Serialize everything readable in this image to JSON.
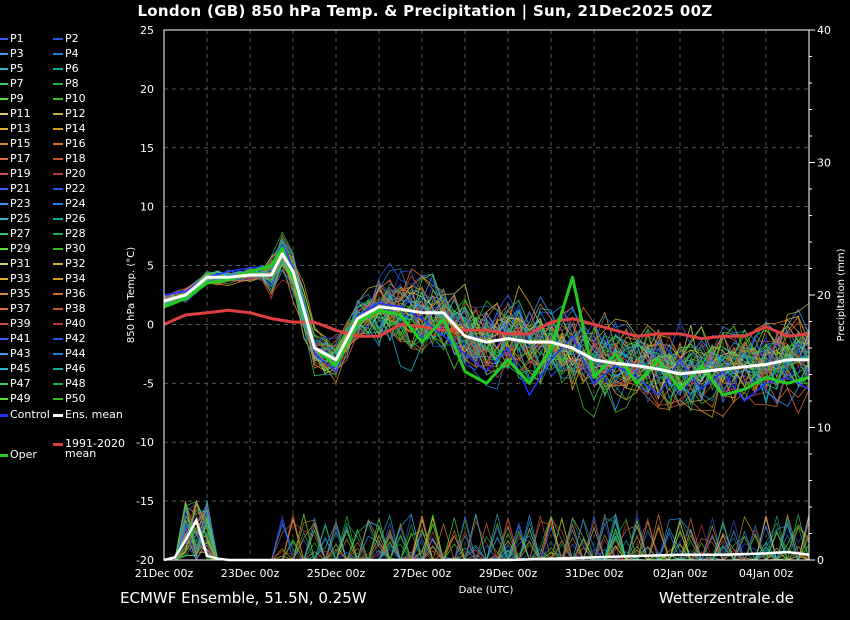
{
  "header": {
    "title": "London  (GB)  850 hPa Temp. & Precipitation | Sun, 21Dec2025 00Z"
  },
  "footer": {
    "model": "ECMWF Ensemble, 51.5N, 0.25W",
    "source": "Wetterzentrale.de"
  },
  "chart_data": {
    "type": "line",
    "title": "London  (GB)  850 hPa Temp. & Precipitation | Sun, 21Dec2025 00Z",
    "xlabel": "Date (UTC)",
    "ylabel": "850 hPa Temp. (°C)",
    "y2label": "Precipitation (mm)",
    "ylim": [
      -20,
      25
    ],
    "y2lim": [
      0,
      40
    ],
    "xlim_hours": [
      0,
      360
    ],
    "grid": true,
    "x_ticks": [
      "21Dec 00z",
      "23Dec 00z",
      "25Dec 00z",
      "27Dec 00z",
      "29Dec 00z",
      "31Dec 00z",
      "02Jan 00z",
      "04Jan 00z"
    ],
    "y_ticks": [
      "25",
      "20",
      "15",
      "10",
      "5",
      "0",
      "-5",
      "-10",
      "-15",
      "-20"
    ],
    "y2_ticks": [
      "40",
      "30",
      "20",
      "10",
      "0"
    ],
    "legend": {
      "placement": "left",
      "members": [
        "P1",
        "P2",
        "P3",
        "P4",
        "P5",
        "P6",
        "P7",
        "P8",
        "P9",
        "P10",
        "P11",
        "P12",
        "P13",
        "P14",
        "P15",
        "P16",
        "P17",
        "P18",
        "P19",
        "P20",
        "P21",
        "P22",
        "P23",
        "P24",
        "P25",
        "P26",
        "P27",
        "P28",
        "P29",
        "P30",
        "P31",
        "P32",
        "P33",
        "P34",
        "P35",
        "P36",
        "P37",
        "P38",
        "P39",
        "P40",
        "P41",
        "P42",
        "P43",
        "P44",
        "P45",
        "P46",
        "P47",
        "P48",
        "P49",
        "P50"
      ],
      "member_colors": [
        "#3b5bff",
        "#2f4fd8",
        "#3399ff",
        "#1f7fe0",
        "#22b8cc",
        "#18a8a0",
        "#33cc66",
        "#22aa44",
        "#55dd33",
        "#33bb22",
        "#d8d060",
        "#c8b040",
        "#e0b030",
        "#d09a20",
        "#e08a30",
        "#d07028",
        "#e06a40",
        "#c85030",
        "#d04a4a",
        "#b83838",
        "#3b5bff",
        "#2f4fd8",
        "#3399ff",
        "#1f7fe0",
        "#22b8cc",
        "#18a8a0",
        "#33cc66",
        "#22aa44",
        "#55dd33",
        "#33bb22",
        "#d8d060",
        "#c8b040",
        "#e0b030",
        "#d09a20",
        "#e08a30",
        "#d07028",
        "#e06a40",
        "#c85030",
        "#d04a4a",
        "#b83838",
        "#3b5bff",
        "#2f4fd8",
        "#3399ff",
        "#1f7fe0",
        "#22b8cc",
        "#18a8a0",
        "#33cc66",
        "#22aa44",
        "#55dd33",
        "#33bb22"
      ],
      "control": {
        "label": "Control",
        "color": "#2233ff"
      },
      "ens_mean": {
        "label": "Ens. mean",
        "color": "#ffffff"
      },
      "climate": {
        "label1": "1991-2020",
        "label2": "mean",
        "color": "#e04040"
      },
      "oper": {
        "label": "Oper",
        "color": "#22cc22"
      }
    },
    "series": [
      {
        "name": "Ens. mean",
        "hours": [
          0,
          12,
          24,
          36,
          48,
          60,
          66,
          72,
          84,
          96,
          108,
          120,
          132,
          144,
          156,
          168,
          180,
          192,
          204,
          216,
          228,
          240,
          252,
          264,
          276,
          288,
          300,
          312,
          324,
          336,
          348,
          360
        ],
        "values": [
          2.0,
          2.5,
          4.0,
          4.0,
          4.2,
          4.2,
          6.0,
          4.5,
          -2.0,
          -3.0,
          0.5,
          1.5,
          1.3,
          1.0,
          1.0,
          -1.0,
          -1.5,
          -1.2,
          -1.5,
          -1.5,
          -2.0,
          -3.0,
          -3.3,
          -3.5,
          -3.8,
          -4.2,
          -4.0,
          -3.8,
          -3.6,
          -3.4,
          -3.0,
          -3.0
        ]
      },
      {
        "name": "1991-2020 mean",
        "hours": [
          0,
          12,
          24,
          36,
          48,
          60,
          72,
          84,
          96,
          108,
          120,
          132,
          144,
          156,
          168,
          180,
          192,
          204,
          216,
          228,
          240,
          252,
          264,
          276,
          288,
          300,
          312,
          324,
          336,
          348,
          360
        ],
        "values": [
          0.0,
          0.8,
          1.0,
          1.2,
          1.0,
          0.5,
          0.2,
          0.2,
          -0.5,
          -1.0,
          -1.0,
          0.0,
          -0.2,
          -0.5,
          -0.5,
          -0.5,
          -0.8,
          -0.8,
          0.2,
          0.5,
          0.0,
          -0.5,
          -1.0,
          -0.8,
          -0.8,
          -1.2,
          -1.0,
          -1.0,
          -0.2,
          -1.0,
          -0.8
        ]
      },
      {
        "name": "Oper",
        "hours": [
          0,
          12,
          24,
          36,
          48,
          60,
          66,
          72,
          84,
          96,
          108,
          120,
          132,
          144,
          156,
          168,
          180,
          192,
          204,
          216,
          228,
          240,
          252,
          264,
          276,
          288,
          300,
          312,
          324,
          336,
          348,
          360
        ],
        "values": [
          1.5,
          2.2,
          3.5,
          3.8,
          4.5,
          5.0,
          6.5,
          4.0,
          -2.0,
          -3.5,
          0.2,
          1.2,
          0.8,
          -1.5,
          0.5,
          -4.0,
          -5.0,
          -3.0,
          -5.0,
          -2.0,
          4.0,
          -4.5,
          -2.5,
          -5.0,
          -3.0,
          -5.5,
          -3.5,
          -6.0,
          -5.5,
          -4.5,
          -5.0,
          -4.5
        ]
      },
      {
        "name": "Control",
        "hours": [
          0,
          12,
          24,
          36,
          48,
          60,
          66,
          72,
          84,
          96,
          108,
          120,
          132,
          144,
          156,
          168,
          180,
          192,
          204,
          216,
          228,
          240,
          252,
          264,
          276,
          288,
          300,
          312,
          324,
          336,
          348,
          360
        ],
        "values": [
          2.5,
          2.8,
          4.0,
          4.5,
          4.8,
          5.0,
          6.8,
          4.8,
          -2.5,
          -4.0,
          0.8,
          1.8,
          1.5,
          0.5,
          -1.0,
          -2.5,
          -4.0,
          -2.0,
          -6.0,
          -3.0,
          -1.0,
          -5.0,
          -3.5,
          -4.5,
          -6.0,
          -3.0,
          -5.5,
          -4.0,
          -6.5,
          -5.0,
          -4.5,
          -5.5
        ]
      }
    ],
    "precipitation": {
      "name": "Ens. mean precipitation",
      "hours": [
        0,
        6,
        12,
        18,
        24,
        30,
        36,
        48,
        72,
        96,
        120,
        144,
        168,
        192,
        216,
        240,
        264,
        288,
        312,
        336,
        348,
        360
      ],
      "values": [
        0,
        0.2,
        1.5,
        3.0,
        0.3,
        0.1,
        0,
        0,
        0,
        0,
        0,
        0,
        0,
        0,
        0.1,
        0.2,
        0.3,
        0.4,
        0.4,
        0.5,
        0.6,
        0.4
      ]
    }
  }
}
